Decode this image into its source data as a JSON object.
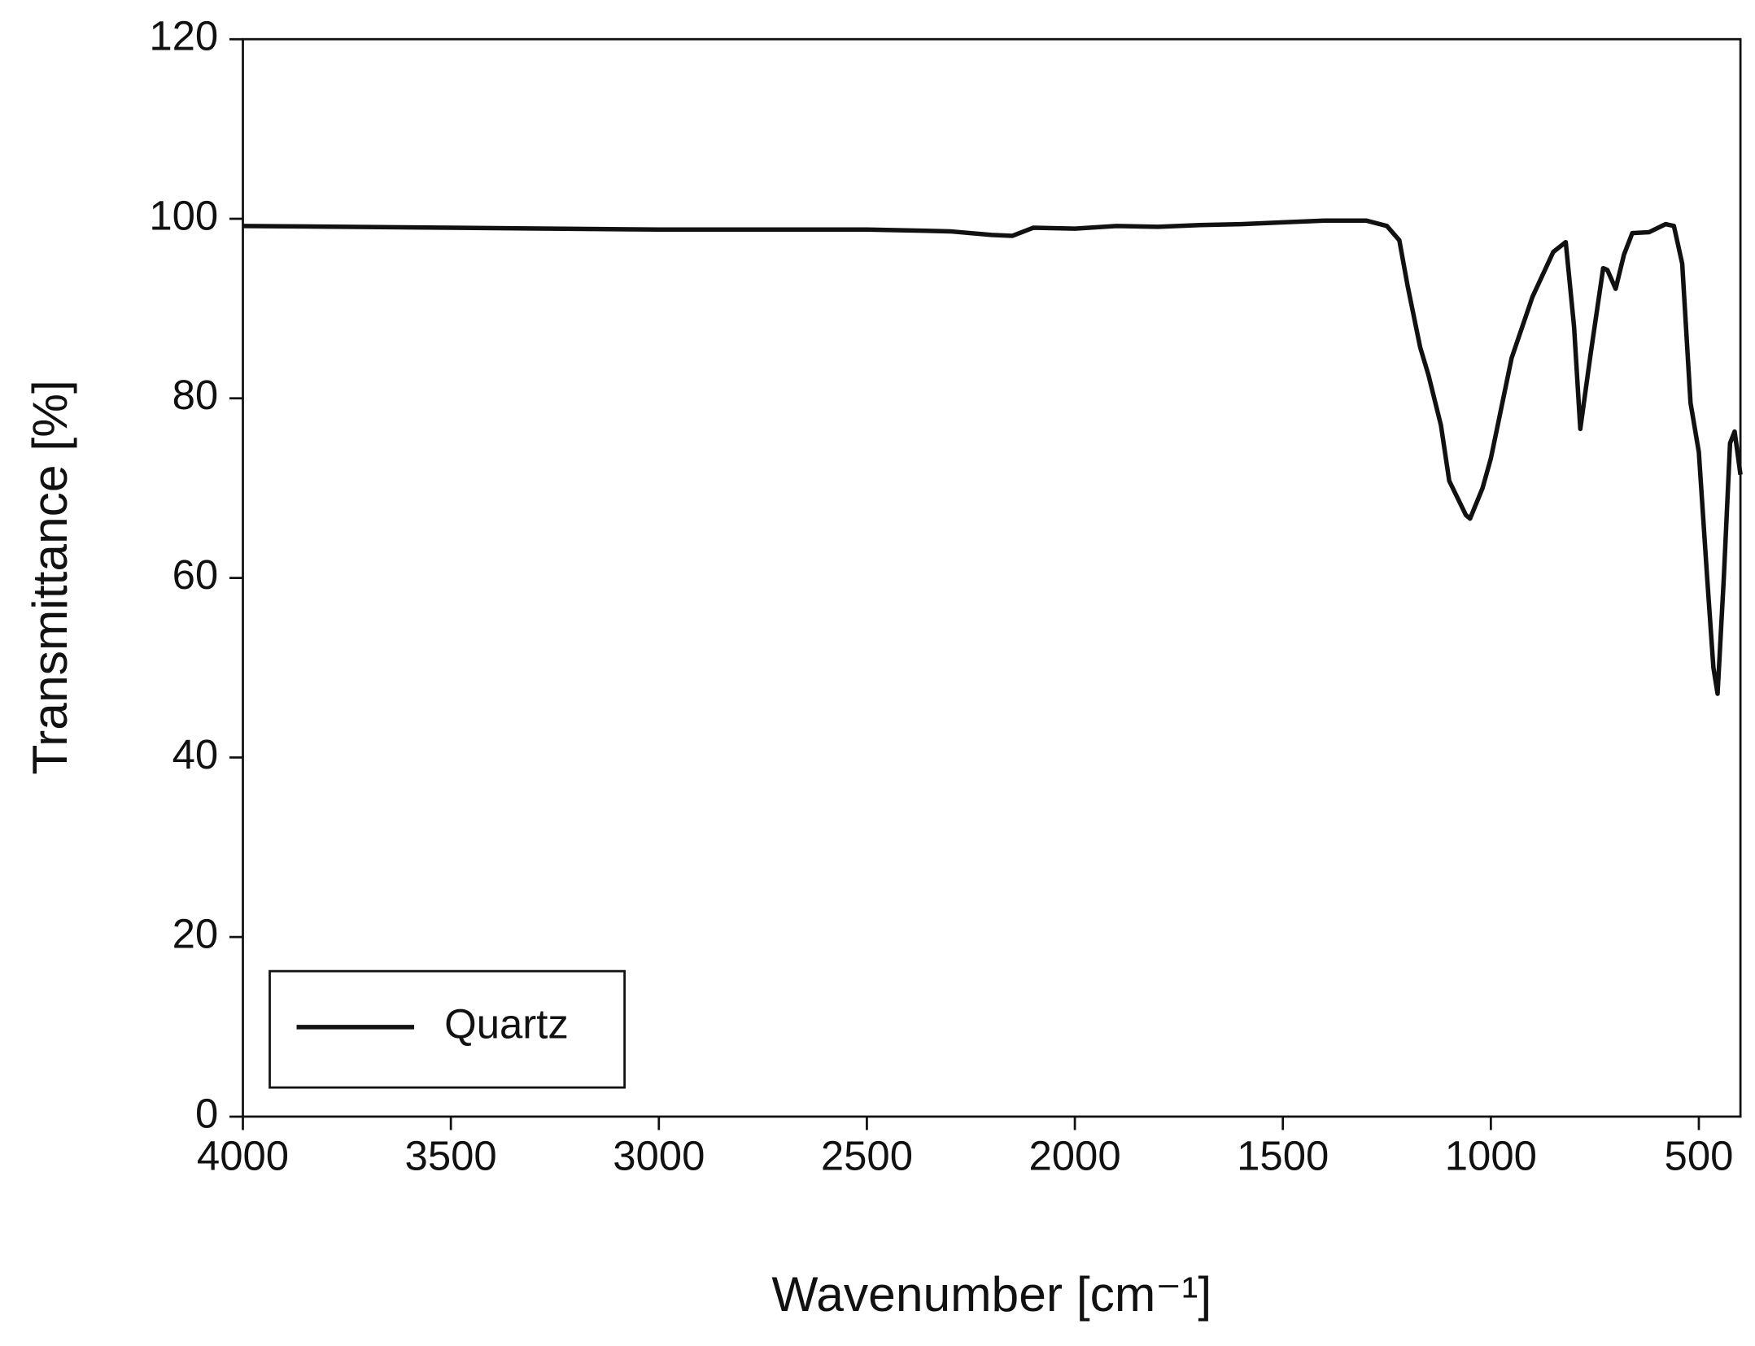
{
  "chart_data": {
    "type": "line",
    "x_label": "Wavenumber [cm⁻¹]",
    "y_label": "Transmittance [%]",
    "x": [
      4000,
      3500,
      3000,
      2500,
      2300,
      2200,
      2150,
      2100,
      2000,
      1900,
      1800,
      1700,
      1600,
      1500,
      1400,
      1300,
      1250,
      1220,
      1200,
      1170,
      1150,
      1120,
      1100,
      1060,
      1050,
      1020,
      1000,
      950,
      900,
      850,
      820,
      800,
      785,
      760,
      730,
      720,
      700,
      680,
      660,
      620,
      580,
      560,
      540,
      520,
      500,
      480,
      465,
      455,
      440,
      425,
      414,
      400
    ],
    "series": [
      {
        "name": "Quartz",
        "color": "#111111",
        "values": [
          99.2,
          99.0,
          98.8,
          98.8,
          98.6,
          98.2,
          98.1,
          99.0,
          98.9,
          99.2,
          99.1,
          99.3,
          99.4,
          99.6,
          99.8,
          99.8,
          99.2,
          97.6,
          92.5,
          85.7,
          82.6,
          77,
          70.8,
          67,
          66.6,
          70,
          73.3,
          84.5,
          91.3,
          96.3,
          97.4,
          88,
          76.6,
          85,
          94.5,
          94.3,
          92.2,
          96,
          98.4,
          98.5,
          99.4,
          99.2,
          95,
          79.5,
          74,
          60,
          50,
          47.1,
          60,
          75,
          76.3,
          71.5
        ]
      }
    ],
    "xlim": [
      4000,
      400
    ],
    "ylim": [
      0,
      120
    ],
    "xticks": [
      4000,
      3500,
      3000,
      2500,
      2000,
      1500,
      1000,
      500
    ],
    "yticks": [
      0,
      20,
      40,
      60,
      80,
      100,
      120
    ],
    "legend": "lower-left"
  }
}
